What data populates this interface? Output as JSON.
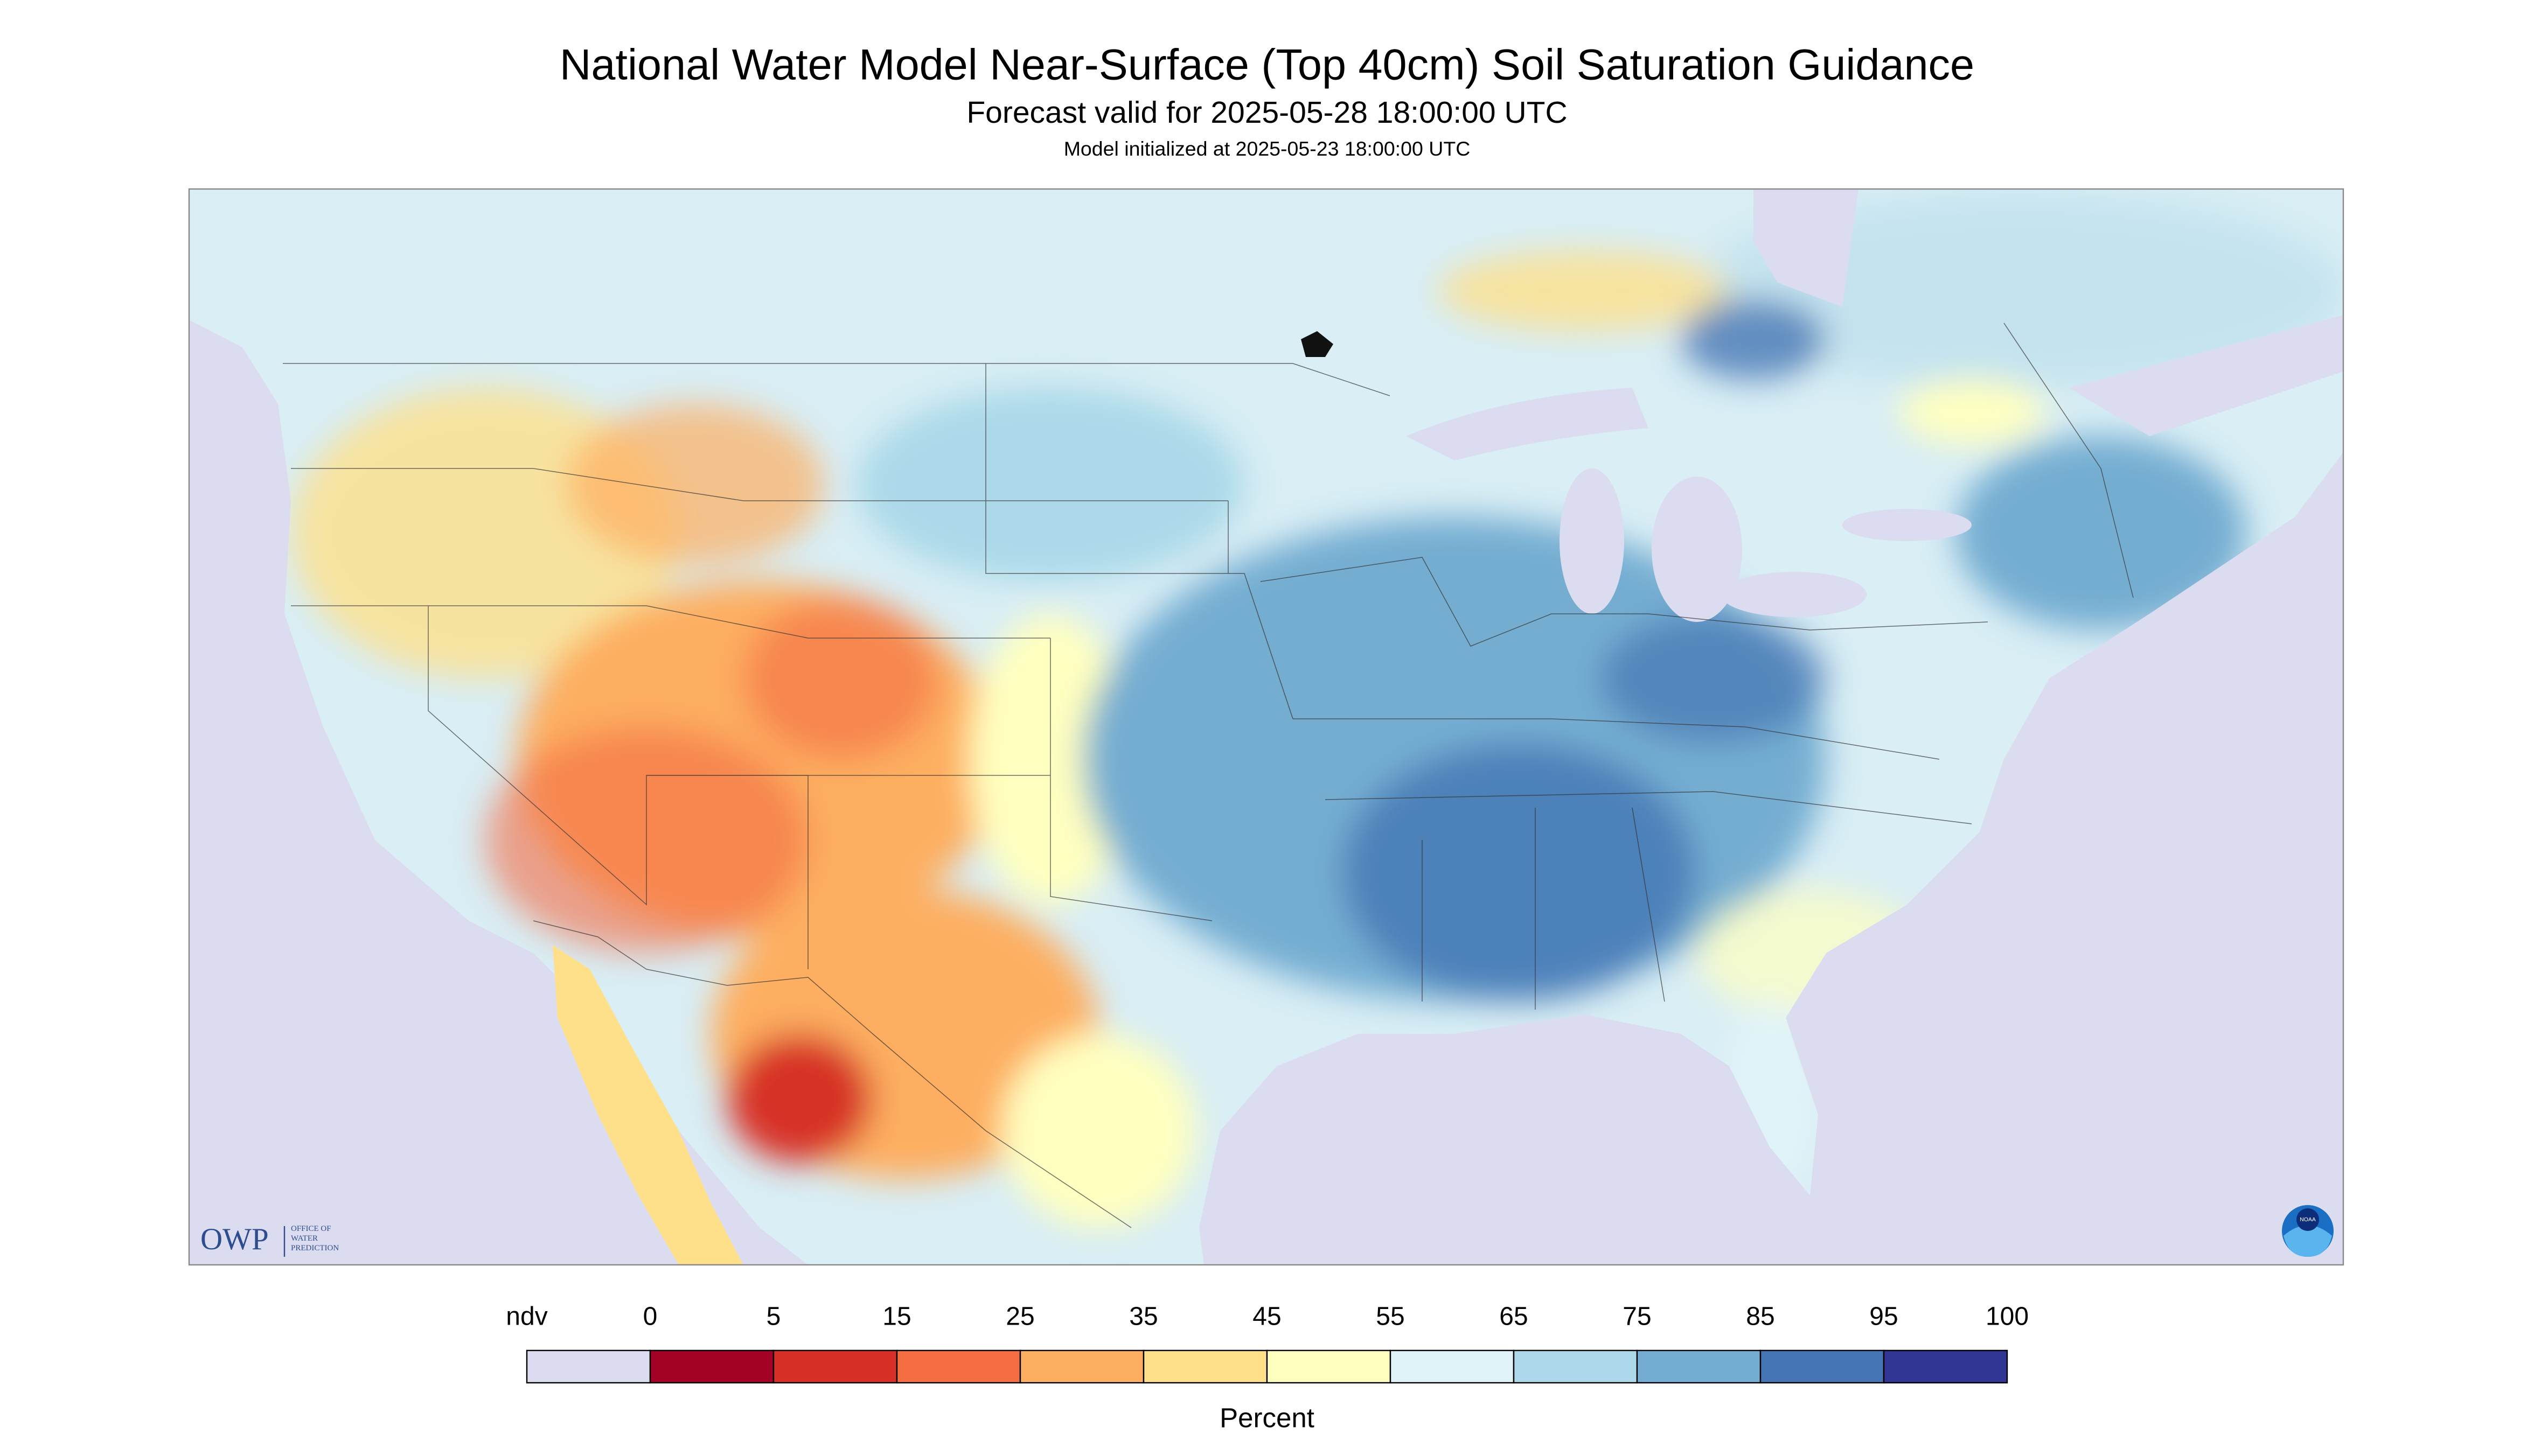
{
  "header": {
    "title": "National Water Model Near-Surface (Top 40cm) Soil Saturation Guidance",
    "subtitle": "Forecast valid for 2025-05-28 18:00:00 UTC",
    "note": "Model initialized at 2025-05-23 18:00:00 UTC"
  },
  "logos": {
    "owp": "OWP",
    "owp_full": [
      "OFFICE OF",
      "WATER",
      "PREDICTION"
    ],
    "noaa": "NOAA"
  },
  "legend": {
    "ndv_label": "ndv",
    "ndv_color": "#dcdcf0",
    "ticks": [
      0,
      5,
      15,
      25,
      35,
      45,
      55,
      65,
      75,
      85,
      95,
      100
    ],
    "colors": [
      "#a50026",
      "#d73027",
      "#f46d43",
      "#fdae61",
      "#fee08b",
      "#ffffbf",
      "#e0f3f8",
      "#abd9e9",
      "#74add1",
      "#4575b4",
      "#313695"
    ],
    "label": "Percent"
  }
}
